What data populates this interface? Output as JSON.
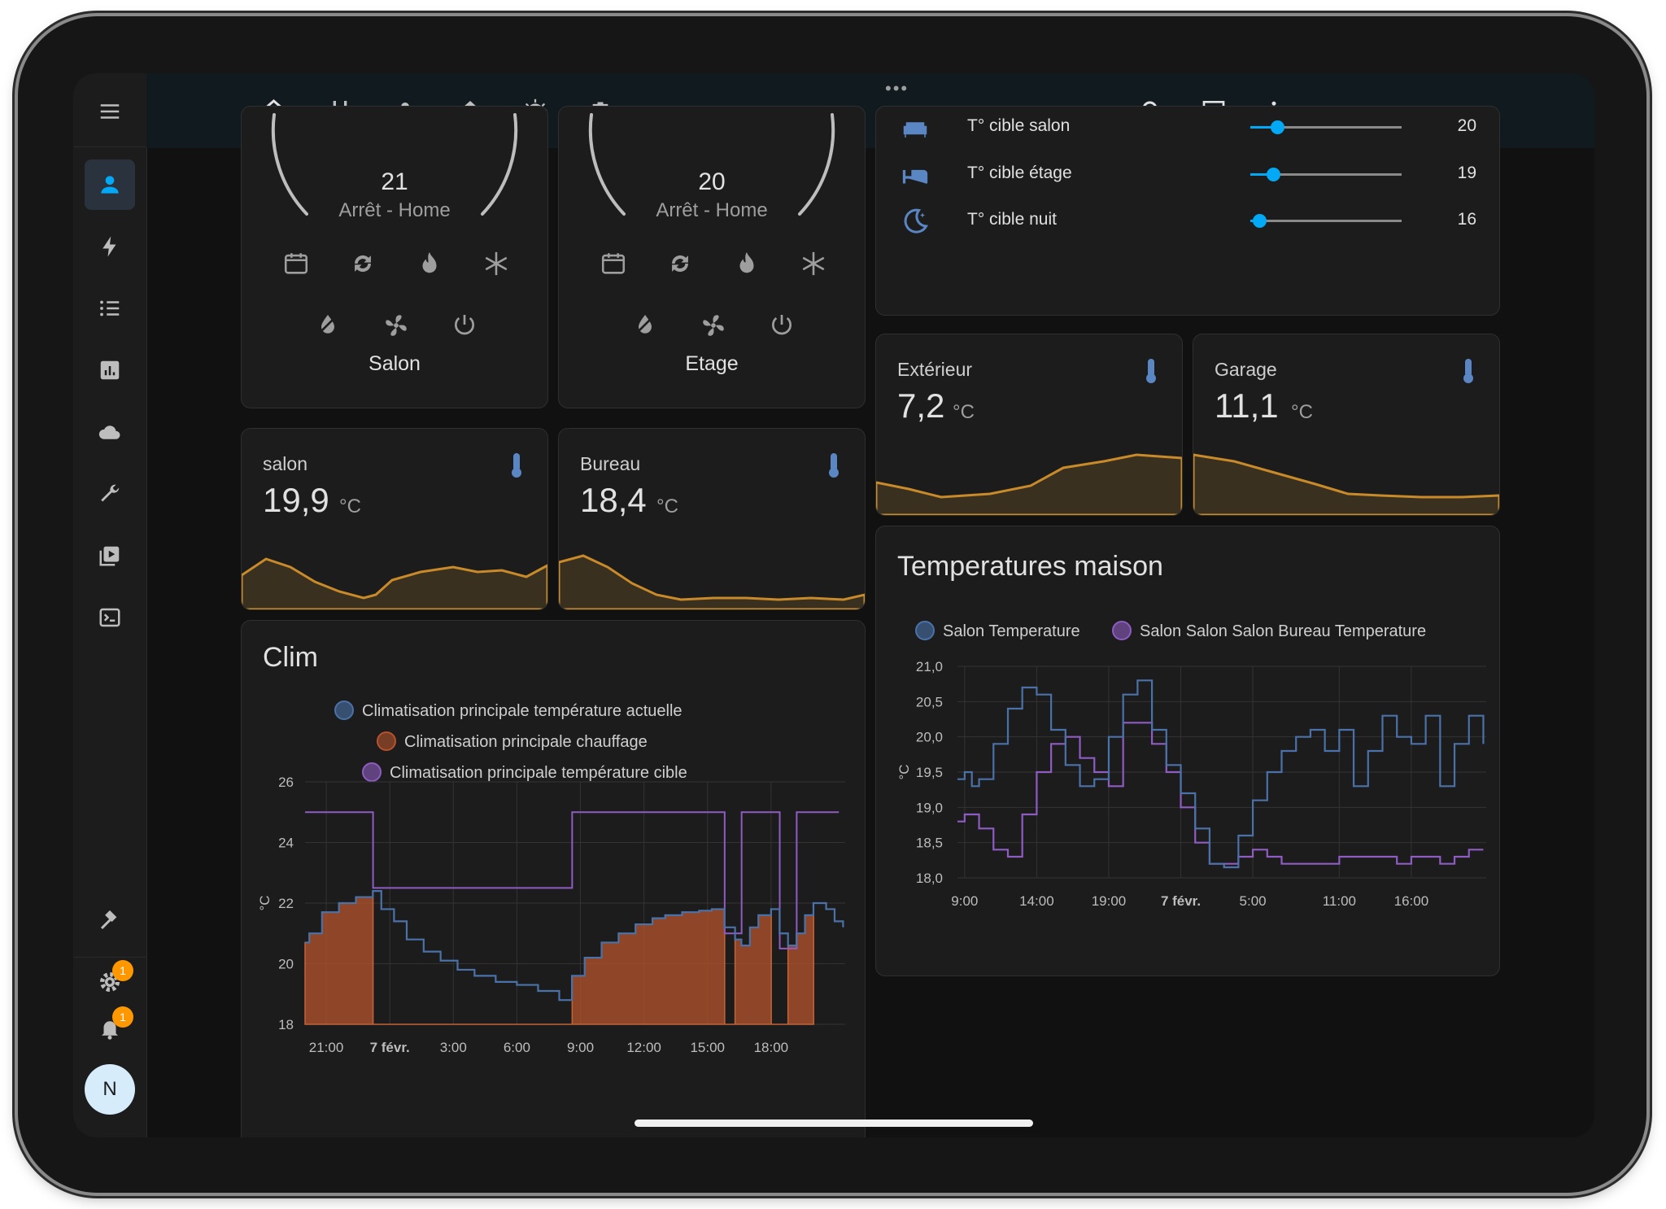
{
  "colors": {
    "accent": "#03a9f4",
    "graph_line": "#c98a2a",
    "graph_fill": "#3a3020",
    "salon_series": "#4a72a8",
    "target_series": "#8e5cc2",
    "heating_fill": "#b5532b"
  },
  "header": {
    "more_indicator": "•••"
  },
  "sidebar": {
    "settings_badge": "1",
    "notifications_badge": "1",
    "avatar_initial": "N"
  },
  "thermostats": [
    {
      "name": "Salon",
      "target": "21",
      "status": "Arrêt - Home"
    },
    {
      "name": "Etage",
      "target": "20",
      "status": "Arrêt - Home"
    }
  ],
  "sliders": [
    {
      "label": "T° cible salon",
      "value": "20",
      "level": 0.18,
      "icon": "sofa-icon"
    },
    {
      "label": "T° cible étage",
      "value": "19",
      "level": 0.15,
      "icon": "bed-icon"
    },
    {
      "label": "T° cible nuit",
      "value": "16",
      "level": 0.06,
      "icon": "moon-icon"
    }
  ],
  "sensors": {
    "salon": {
      "name": "salon",
      "value": "19,9",
      "unit": "°C"
    },
    "bureau": {
      "name": "Bureau",
      "value": "18,4",
      "unit": "°C"
    },
    "exterieur": {
      "name": "Extérieur",
      "value": "7,2",
      "unit": "°C"
    },
    "garage": {
      "name": "Garage",
      "value": "11,1",
      "unit": "°C"
    }
  },
  "clim_card": {
    "title": "Clim",
    "legend": [
      "Climatisation principale température actuelle",
      "Climatisation principale chauffage",
      "Climatisation principale température cible"
    ]
  },
  "temps_card": {
    "title": "Temperatures maison",
    "legend": [
      "Salon Temperature",
      "Salon Salon Salon Bureau Temperature"
    ]
  },
  "chart_data": [
    {
      "type": "line",
      "title": "Clim",
      "ylabel": "°C",
      "ylim": [
        18,
        26
      ],
      "yticks": [
        "26",
        "24",
        "22",
        "20",
        "18"
      ],
      "xticks": [
        "21:00",
        "7 févr.",
        "3:00",
        "6:00",
        "9:00",
        "12:00",
        "15:00",
        "18:00"
      ],
      "series": [
        {
          "name": "Climatisation principale température actuelle",
          "x": [
            20.0,
            20.2,
            20.8,
            21.6,
            22.4,
            23.2,
            23.6,
            24.2,
            24.8,
            25.6,
            26.4,
            27.2,
            28.0,
            29.0,
            30.0,
            31.0,
            32.0,
            32.6,
            33.2,
            34.0,
            34.8,
            35.6,
            36.4,
            37.0,
            37.8,
            38.6,
            39.2,
            39.8,
            40.3,
            40.6,
            41.0,
            41.4,
            42.0,
            42.4,
            42.8,
            43.2,
            43.6,
            44.0,
            44.6,
            45.0,
            45.4
          ],
          "y": [
            20.7,
            21.0,
            21.7,
            22.0,
            22.2,
            22.4,
            21.8,
            21.4,
            20.8,
            20.4,
            20.1,
            19.8,
            19.6,
            19.4,
            19.3,
            19.1,
            18.8,
            19.6,
            20.2,
            20.7,
            21.0,
            21.3,
            21.5,
            21.6,
            21.7,
            21.75,
            21.8,
            21.2,
            20.8,
            20.6,
            21.2,
            21.6,
            21.8,
            21.0,
            20.6,
            21.0,
            21.6,
            22.0,
            21.8,
            21.4,
            21.2
          ]
        },
        {
          "name": "Climatisation principale chauffage",
          "x": [
            20.0,
            20.2,
            20.8,
            21.6,
            22.4,
            23.2,
            23.21,
            32.6,
            32.61,
            33.2,
            34.0,
            34.8,
            35.6,
            36.4,
            37.0,
            37.8,
            38.6,
            39.2,
            39.8,
            39.81,
            40.3,
            40.6,
            41.0,
            41.4,
            42.0,
            42.01,
            42.8,
            43.2,
            43.6,
            44.0,
            44.01
          ],
          "y": [
            20.7,
            21.0,
            21.7,
            22.0,
            22.2,
            22.4,
            18.0,
            18.0,
            19.6,
            20.2,
            20.7,
            21.0,
            21.3,
            21.5,
            21.6,
            21.7,
            21.75,
            21.8,
            21.2,
            18.0,
            20.8,
            20.6,
            21.2,
            21.6,
            21.8,
            18.0,
            20.6,
            21.0,
            21.6,
            22.0,
            18.0
          ]
        },
        {
          "name": "Climatisation principale température cible",
          "x": [
            20.0,
            23.2,
            23.21,
            32.6,
            32.61,
            39.8,
            39.81,
            40.6,
            40.61,
            42.4,
            42.41,
            43.2,
            43.21,
            45.2
          ],
          "y": [
            25,
            25,
            22.5,
            22.5,
            25,
            25,
            21,
            21,
            25,
            25,
            20.5,
            20.5,
            25,
            25
          ]
        }
      ]
    },
    {
      "type": "line",
      "title": "Temperatures maison",
      "ylabel": "°C",
      "ylim": [
        18.0,
        21.0
      ],
      "yticks": [
        "21,0",
        "20,5",
        "20,0",
        "19,5",
        "19,0",
        "18,5",
        "18,0"
      ],
      "xticks": [
        "9:00",
        "14:00",
        "19:00",
        "7 févr.",
        "5:00",
        "11:00",
        "16:00"
      ],
      "series": [
        {
          "name": "Salon Temperature",
          "x": [
            8.5,
            9,
            9.5,
            10,
            11,
            12,
            13,
            14,
            15,
            16,
            17,
            18,
            19,
            20,
            21,
            22,
            23,
            24,
            25,
            26,
            27,
            28,
            29,
            30,
            31,
            32,
            33,
            34,
            35,
            36,
            37,
            38,
            39,
            40,
            41,
            42,
            43,
            44,
            45
          ],
          "y": [
            19.4,
            19.5,
            19.3,
            19.4,
            19.9,
            20.4,
            20.7,
            20.6,
            20.1,
            19.6,
            19.3,
            19.4,
            20.0,
            20.6,
            20.8,
            20.1,
            19.6,
            19.2,
            18.7,
            18.2,
            18.15,
            18.6,
            19.1,
            19.5,
            19.8,
            20.0,
            20.1,
            19.8,
            20.1,
            19.3,
            19.8,
            20.3,
            20.0,
            19.9,
            20.3,
            19.3,
            19.9,
            20.3,
            19.9
          ]
        },
        {
          "name": "Salon Salon Salon Bureau Temperature",
          "x": [
            8.5,
            9,
            10,
            11,
            12,
            13,
            14,
            15,
            16,
            17,
            18,
            19,
            20,
            21,
            22,
            23,
            24,
            25,
            26,
            27,
            28,
            29,
            30,
            31,
            32,
            33,
            34,
            35,
            36,
            37,
            38,
            39,
            40,
            41,
            42,
            43,
            44,
            45
          ],
          "y": [
            18.8,
            18.9,
            18.7,
            18.4,
            18.3,
            18.9,
            19.5,
            19.9,
            20.0,
            19.7,
            19.5,
            19.3,
            20.2,
            20.2,
            19.9,
            19.5,
            19.0,
            18.5,
            18.2,
            18.2,
            18.3,
            18.4,
            18.3,
            18.2,
            18.2,
            18.2,
            18.2,
            18.3,
            18.3,
            18.3,
            18.3,
            18.2,
            18.3,
            18.3,
            18.2,
            18.3,
            18.4,
            18.4
          ]
        }
      ]
    }
  ]
}
